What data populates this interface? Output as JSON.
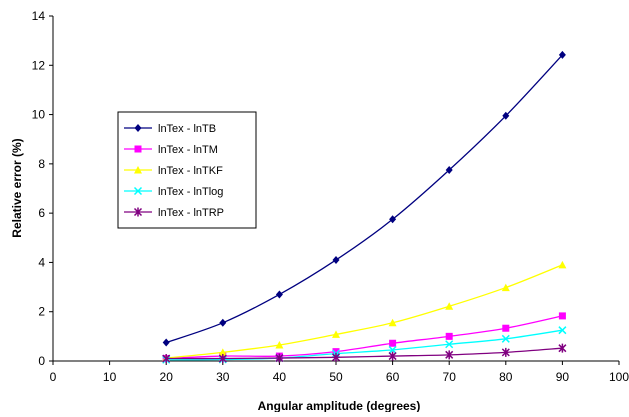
{
  "chart_data": {
    "type": "line",
    "title": "",
    "xlabel": "Angular amplitude (degrees)",
    "ylabel": "Relative error (%)",
    "xlim": [
      0,
      100
    ],
    "ylim": [
      0,
      14
    ],
    "x_ticks": [
      "0",
      "10",
      "20",
      "30",
      "40",
      "50",
      "60",
      "70",
      "80",
      "90",
      "100"
    ],
    "y_ticks": [
      "0",
      "2",
      "4",
      "6",
      "8",
      "10",
      "12",
      "14"
    ],
    "grid": false,
    "legend_position": "left",
    "x": [
      20,
      30,
      40,
      50,
      60,
      70,
      80,
      90
    ],
    "series": [
      {
        "name": "lnTex - lnTB",
        "color": "#000080",
        "marker": "diamond",
        "values": [
          0.75,
          1.55,
          2.7,
          4.1,
          5.75,
          7.75,
          9.95,
          12.42
        ]
      },
      {
        "name": "lnTex - lnTM",
        "color": "#FF00FF",
        "marker": "square",
        "values": [
          0.1,
          0.2,
          0.2,
          0.38,
          0.72,
          1.0,
          1.33,
          1.83
        ]
      },
      {
        "name": "lnTex - lnTKF",
        "color": "#FFFF00",
        "marker": "triangle",
        "values": [
          0.12,
          0.35,
          0.65,
          1.08,
          1.55,
          2.22,
          2.98,
          3.9
        ]
      },
      {
        "name": "lnTex - lnTlog",
        "color": "#00FFFF",
        "marker": "x",
        "values": [
          0.05,
          0.06,
          0.12,
          0.3,
          0.45,
          0.68,
          0.9,
          1.25
        ]
      },
      {
        "name": "lnTex - lnTRP",
        "color": "#800080",
        "marker": "star",
        "values": [
          0.1,
          0.1,
          0.12,
          0.15,
          0.2,
          0.25,
          0.35,
          0.52
        ]
      }
    ]
  }
}
